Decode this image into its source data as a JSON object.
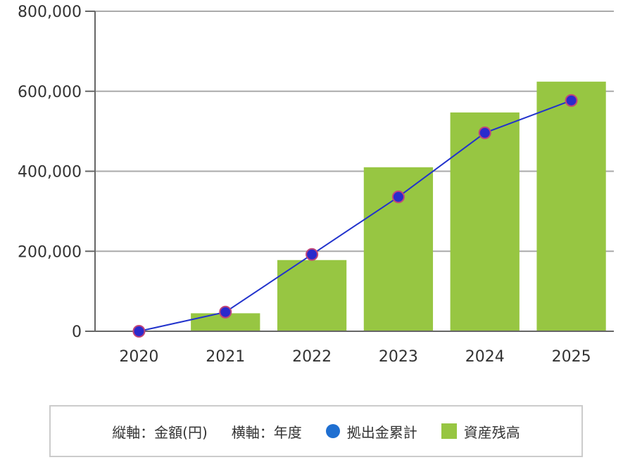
{
  "chart_data": {
    "type": "bar",
    "categories": [
      "2020",
      "2021",
      "2022",
      "2023",
      "2024",
      "2025"
    ],
    "series": [
      {
        "name": "資産残高",
        "kind": "bar",
        "color": "#97c642",
        "values": [
          0,
          45000,
          178000,
          410000,
          547000,
          624000
        ]
      },
      {
        "name": "拠出金累計",
        "kind": "line",
        "color": "#2233cc",
        "marker_color": "#1f6fd1",
        "values": [
          0,
          48000,
          192000,
          336000,
          496000,
          577000
        ]
      }
    ],
    "y_ticks": [
      "0",
      "200,000",
      "400,000",
      "600,000",
      "800,000"
    ],
    "ylim": [
      0,
      800000
    ],
    "grid": true
  },
  "legend": {
    "yaxis_note": "縦軸：金額(円)",
    "xaxis_note": "横軸：年度",
    "line_label": "拠出金累計",
    "bar_label": "資産残高"
  }
}
